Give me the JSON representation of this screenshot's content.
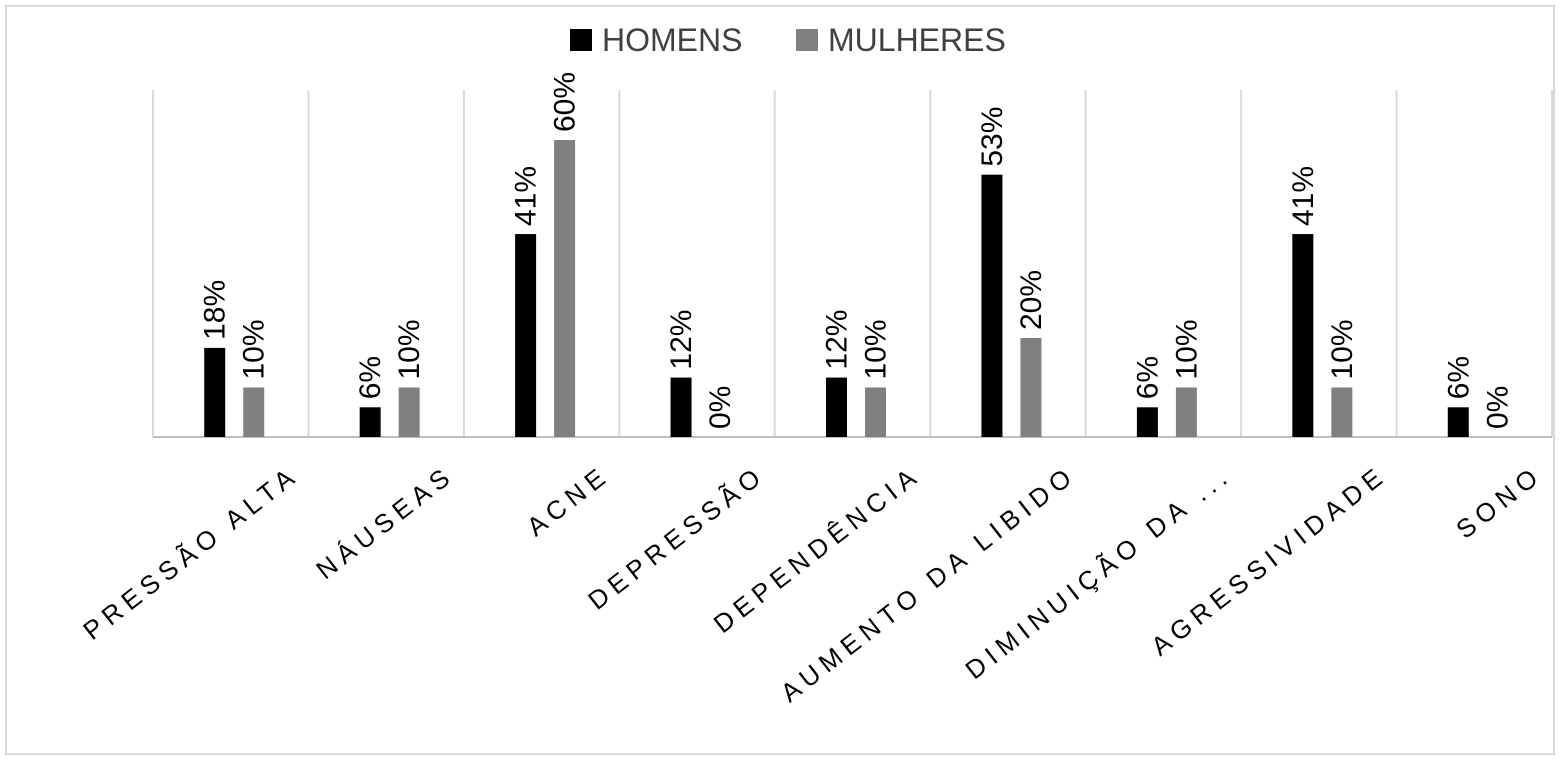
{
  "chart_data": {
    "type": "bar",
    "categories": [
      "PRESSÃO ALTA",
      "NÁUSEAS",
      "ACNE",
      "DEPRESSÃO",
      "DEPENDÊNCIA",
      "AUMENTO DA LIBIDO",
      "DIMINUIÇÃO DA ...",
      "AGRESSIVIDADE",
      "SONO"
    ],
    "series": [
      {
        "name": "HOMENS",
        "color": "#000000",
        "values": [
          18,
          6,
          41,
          12,
          12,
          53,
          6,
          41,
          6
        ],
        "labels": [
          "18%",
          "6%",
          "41%",
          "12%",
          "12%",
          "53%",
          "6%",
          "41%",
          "6%"
        ]
      },
      {
        "name": "MULHERES",
        "color": "#808080",
        "values": [
          10,
          10,
          60,
          0,
          10,
          20,
          10,
          10,
          0
        ],
        "labels": [
          "10%",
          "10%",
          "60%",
          "0%",
          "10%",
          "20%",
          "10%",
          "10%",
          "0%"
        ]
      }
    ],
    "ylim": [
      0,
      60
    ],
    "legend_position": "top-center",
    "gridlines": "vertical category separators",
    "gridline_color": "#d9d9d9",
    "axis_color": "#bfbfbf",
    "title": "",
    "xlabel": "",
    "ylabel": ""
  }
}
